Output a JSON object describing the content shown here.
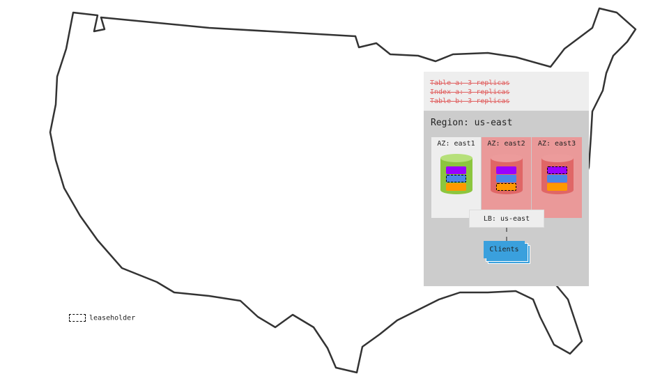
{
  "replication_notes": [
    "Table a: 3 replicas",
    "Index a: 3 replicas",
    "Table b: 3 replicas"
  ],
  "region": {
    "title": "Region: us-east"
  },
  "azs": [
    {
      "label": "AZ: east1",
      "status": "up",
      "leaseholder_replica": "blue"
    },
    {
      "label": "AZ: east2",
      "status": "down",
      "leaseholder_replica": "orange"
    },
    {
      "label": "AZ: east3",
      "status": "down",
      "leaseholder_replica": "purple"
    }
  ],
  "load_balancer": {
    "label": "LB: us-east"
  },
  "clients": {
    "label": "Clients"
  },
  "legend": {
    "label": "leaseholder"
  },
  "colors": {
    "replica_purple": "#9900ff",
    "replica_blue": "#4a86e8",
    "replica_orange": "#ff9900",
    "az_up_db": "#8cc63e",
    "az_down_db": "#e06666",
    "az_down_bg": "#ea9999",
    "clients": "#3aa0dd"
  }
}
